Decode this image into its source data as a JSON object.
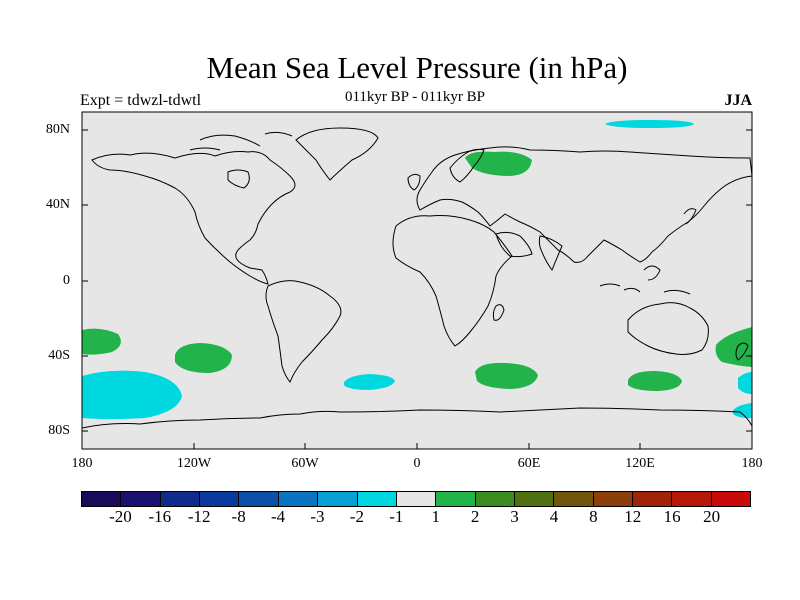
{
  "title": "Mean Sea Level Pressure (in hPa)",
  "subtitle": "011kyr BP - 011kyr BP",
  "left_label": "Expt = tdwzl-tdwtl",
  "right_label": "JJA",
  "lat_labels": [
    "80N",
    "40N",
    "0",
    "40S",
    "80S"
  ],
  "lon_labels": [
    "180",
    "120W",
    "60W",
    "0",
    "60E",
    "120E",
    "180"
  ],
  "colorbar": {
    "labels": [
      "-20",
      "-16",
      "-12",
      "-8",
      "-4",
      "-3",
      "-2",
      "-1",
      "1",
      "2",
      "3",
      "4",
      "8",
      "12",
      "16",
      "20"
    ],
    "colors": [
      "#1a0a5a",
      "#1a1070",
      "#102b8c",
      "#0a3a9c",
      "#0a52a8",
      "#0a74c0",
      "#06a0d2",
      "#00d8e0",
      "#e6e6e6",
      "#22b34a",
      "#3a8c1e",
      "#506f0e",
      "#70560a",
      "#8c3f0a",
      "#a0240a",
      "#b41808",
      "#c80a0a"
    ]
  },
  "colors": {
    "background": "#e6e6e6",
    "positive": "#22b34a",
    "negative": "#00d8e0"
  }
}
